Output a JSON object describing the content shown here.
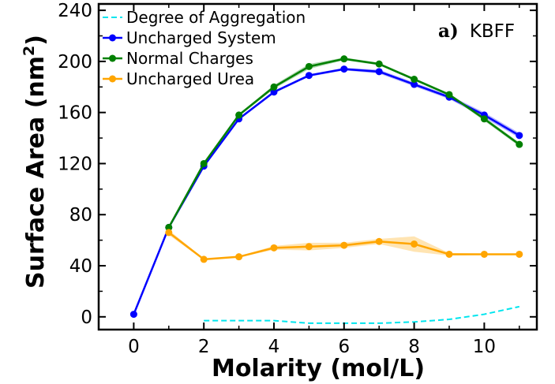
{
  "chart_data": {
    "type": "line",
    "title": "",
    "panel_label": {
      "prefix": "a)",
      "name": "KBFF"
    },
    "xlabel": "Molarity (mol/L)",
    "ylabel_main": "Surface Area (nm",
    "ylabel_sup": "2",
    "ylabel_close": ")",
    "xlim": [
      -1,
      11.5
    ],
    "ylim": [
      -10,
      245
    ],
    "xticks": [
      0,
      2,
      4,
      6,
      8,
      10
    ],
    "yticks": [
      0,
      40,
      80,
      120,
      160,
      200,
      240
    ],
    "legend_position": "top-left",
    "series": [
      {
        "name": "Degree of Aggregation",
        "color": "#00e5ee",
        "style": "dashed",
        "markers": false,
        "x": [
          2,
          3,
          4,
          5,
          6,
          7,
          8,
          9,
          10,
          11
        ],
        "y": [
          -3,
          -3,
          -3,
          -5,
          -5,
          -5,
          -4,
          -2,
          2,
          8
        ]
      },
      {
        "name": "Uncharged System",
        "color": "#0000ff",
        "style": "solid",
        "markers": true,
        "x": [
          0,
          1,
          2,
          3,
          4,
          5,
          6,
          7,
          8,
          9,
          10,
          11
        ],
        "y": [
          2,
          70,
          118,
          155,
          176,
          189,
          194,
          192,
          182,
          172,
          158,
          142
        ],
        "band": [
          0,
          1,
          1,
          1,
          1,
          1,
          1,
          1.5,
          1.5,
          1.5,
          2,
          2
        ]
      },
      {
        "name": "Normal Charges",
        "color": "#008000",
        "style": "solid",
        "markers": true,
        "x": [
          1,
          2,
          3,
          4,
          5,
          6,
          7,
          8,
          9,
          10,
          11
        ],
        "y": [
          70,
          120,
          158,
          180,
          196,
          202,
          198,
          186,
          174,
          155,
          135
        ],
        "band": [
          1,
          1,
          1,
          1.5,
          2,
          1,
          1,
          1,
          1,
          1.5,
          1.5
        ]
      },
      {
        "name": "Uncharged Urea",
        "color": "#ffa500",
        "style": "solid",
        "markers": true,
        "x": [
          1,
          2,
          3,
          4,
          5,
          6,
          7,
          8,
          9,
          10,
          11
        ],
        "y": [
          66,
          45,
          47,
          54,
          55,
          56,
          59,
          57,
          49,
          49,
          49
        ],
        "band": [
          2,
          0.5,
          0.5,
          1.5,
          3,
          2,
          2,
          6,
          1,
          0.5,
          0.5
        ]
      }
    ]
  }
}
